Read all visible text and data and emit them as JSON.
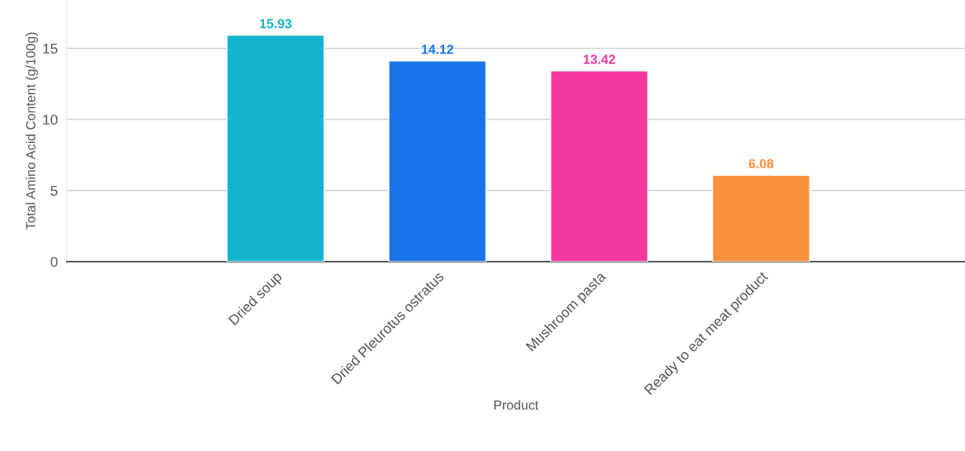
{
  "chart_data": {
    "type": "bar",
    "xlabel": "Product",
    "ylabel": "Total Amino Acid Content (g/100g)",
    "categories": [
      "Dried soup",
      "Dried Pleurotus ostratus",
      "Mushroom pasta",
      "Ready to eat meat product"
    ],
    "values": [
      15.93,
      14.12,
      13.42,
      6.08
    ],
    "colors": [
      "#12b5cb",
      "#1a73e8",
      "#f538a0",
      "#fa903e"
    ],
    "ylim": [
      0,
      18.4
    ],
    "yticks": [
      0,
      5,
      10,
      15
    ],
    "grid": "y",
    "data_labels": true
  }
}
